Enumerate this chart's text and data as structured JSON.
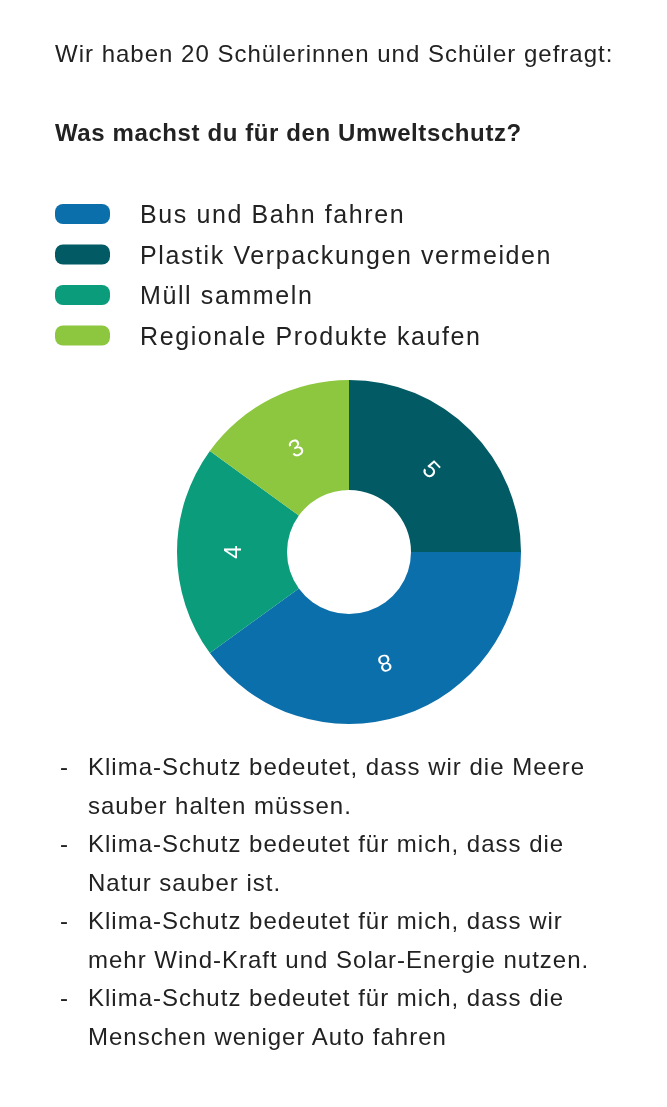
{
  "chart_data": {
    "type": "donut",
    "title": "Wir haben 20 Schülerinnen und Schüler gefragt:",
    "subtitle": "Was machst du für den Umweltschutz?",
    "categories": [
      "Bus und Bahn fahren",
      "Plastik Verpackungen vermeiden",
      "Müll sammeln",
      "Regionale Produkte kaufen"
    ],
    "values": [
      8,
      5,
      4,
      3
    ],
    "colors": [
      "#0a6faa",
      "#015a64",
      "#0b9c7c",
      "#8dc63f"
    ],
    "data_labels": true,
    "legend": "top left",
    "annotations": [
      "- Klima-Schutz bedeutet, dass wir die Meere sauber halten müssen.",
      "- Klima-Schutz bedeutet für mich, dass die Natur sauber ist.",
      "- Klima-Schutz bedeutet für mich, dass wir mehr Wind-Kraft und Solar-Energie nutzen.",
      "- Klima-Schutz bedeutet für mich, dass die Menschen weniger Auto fahren"
    ]
  }
}
